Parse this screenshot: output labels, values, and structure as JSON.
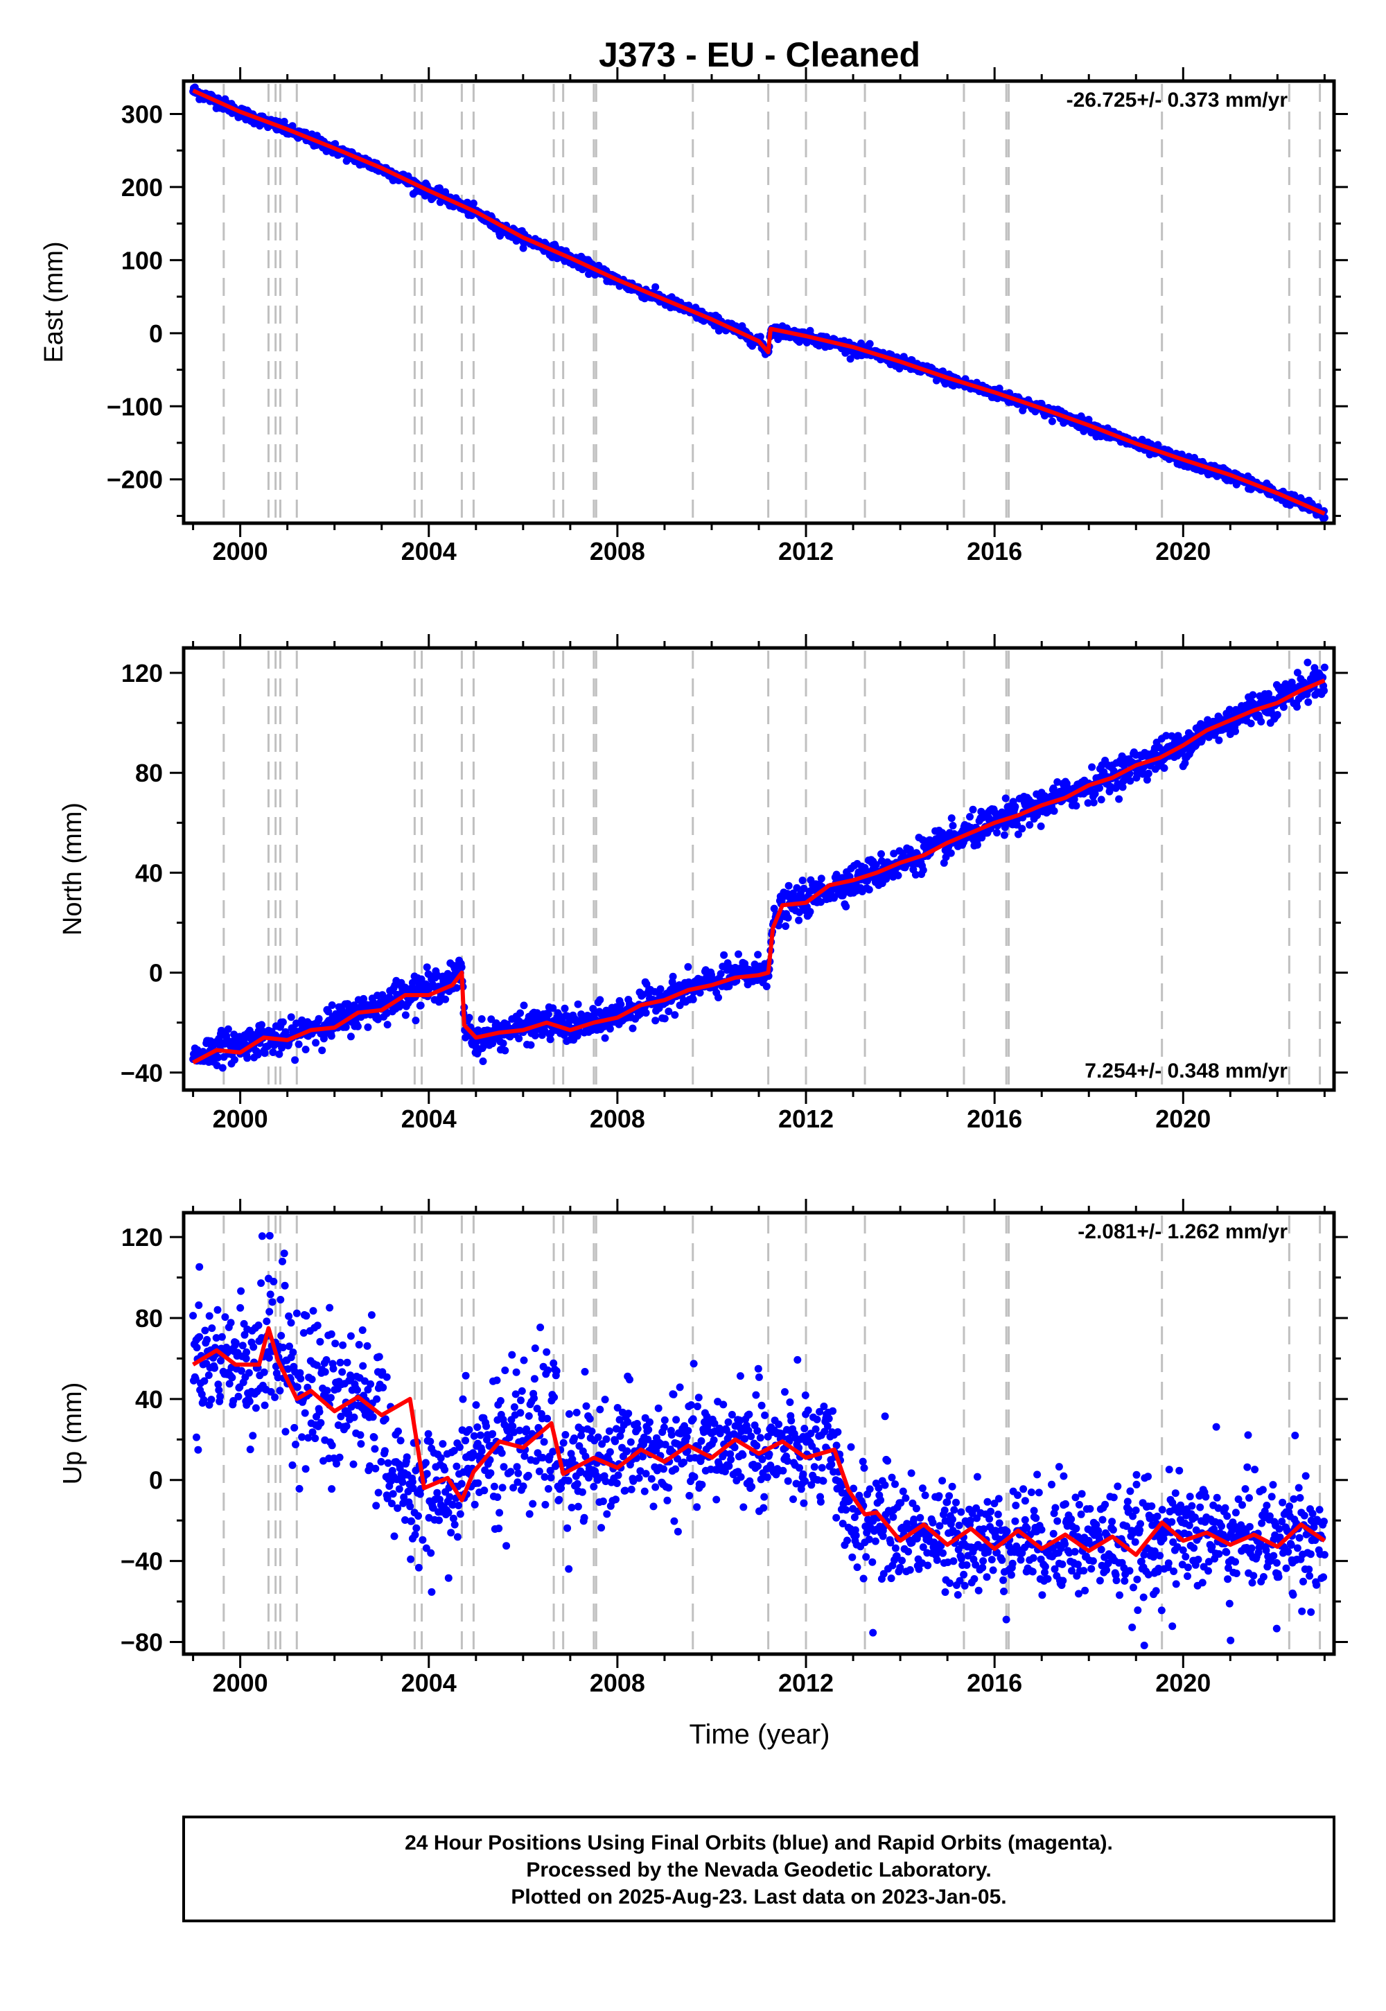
{
  "title": "J373  - EU - Cleaned",
  "xlabel": "Time (year)",
  "footer": {
    "line1": "24 Hour Positions Using Final Orbits (blue) and Rapid Orbits (magenta).",
    "line2": "Processed by the Nevada Geodetic Laboratory.",
    "line3": "Plotted on 2025-Aug-23. Last data on 2023-Jan-05."
  },
  "colors": {
    "observations": "#0000ff",
    "model": "#ff0000",
    "event_lines": "#c0c0c0",
    "axes": "#000000"
  },
  "chart_data": [
    {
      "type": "scatter",
      "ylabel": "East (mm)",
      "rate": "-26.725+/- 0.373 mm/yr",
      "rate_position": "top-right",
      "xlim": [
        1998.8,
        2023.2
      ],
      "ylim": [
        -260,
        345
      ],
      "x_ticks": [
        2000,
        2004,
        2008,
        2012,
        2016,
        2020
      ],
      "y_ticks": [
        -200,
        -100,
        0,
        100,
        200,
        300
      ],
      "y_tick_labels": [
        "−200",
        "−100",
        "0",
        "100",
        "200",
        "300"
      ],
      "event_lines_years": [
        1999.65,
        2000.6,
        2000.75,
        2000.85,
        2001.2,
        2003.7,
        2003.85,
        2004.7,
        2004.95,
        2006.65,
        2006.85,
        2007.5,
        2007.55,
        2009.6,
        2011.2,
        2012.0,
        2013.25,
        2015.35,
        2016.25,
        2016.3,
        2019.55,
        2022.25,
        2022.9
      ],
      "series": [
        {
          "role": "daily positions",
          "x": [
            1999.0,
            1999.5,
            2000.0,
            2000.5,
            2001.0,
            2001.5,
            2002.0,
            2002.5,
            2003.0,
            2003.5,
            2004.0,
            2004.5,
            2005.0,
            2005.5,
            2006.0,
            2006.5,
            2007.0,
            2007.5,
            2008.0,
            2008.5,
            2009.0,
            2009.5,
            2010.0,
            2010.5,
            2011.0,
            2011.2,
            2011.25,
            2011.5,
            2012.0,
            2012.5,
            2013.0,
            2013.5,
            2014.0,
            2014.5,
            2015.0,
            2015.5,
            2016.0,
            2016.5,
            2017.0,
            2017.5,
            2018.0,
            2018.5,
            2019.0,
            2019.5,
            2020.0,
            2020.5,
            2021.0,
            2021.5,
            2022.0,
            2022.5,
            2023.0
          ],
          "y": [
            332,
            318,
            302,
            290,
            278,
            265,
            252,
            238,
            225,
            210,
            194,
            180,
            165,
            145,
            130,
            118,
            102,
            88,
            72,
            58,
            45,
            32,
            18,
            5,
            -12,
            -27,
            5,
            2,
            -5,
            -12,
            -20,
            -30,
            -40,
            -50,
            -62,
            -72,
            -82,
            -92,
            -104,
            -115,
            -127,
            -140,
            -152,
            -163,
            -174,
            -185,
            -195,
            -207,
            -220,
            -233,
            -248
          ]
        },
        {
          "role": "model fit",
          "x": [
            1999.0,
            2000.0,
            2001.0,
            2002.0,
            2003.0,
            2004.0,
            2005.0,
            2006.0,
            2007.0,
            2008.0,
            2009.0,
            2010.0,
            2011.0,
            2011.2,
            2011.25,
            2012.0,
            2013.0,
            2014.0,
            2015.0,
            2016.0,
            2017.0,
            2018.0,
            2019.0,
            2020.0,
            2021.0,
            2022.0,
            2023.0
          ],
          "y": [
            332,
            303,
            279,
            253,
            226,
            195,
            166,
            131,
            103,
            73,
            46,
            19,
            -11,
            -26,
            6,
            -4,
            -19,
            -39,
            -61,
            -81,
            -103,
            -126,
            -151,
            -173,
            -194,
            -219,
            -247
          ]
        }
      ]
    },
    {
      "type": "scatter",
      "ylabel": "North (mm)",
      "rate": "7.254+/- 0.348 mm/yr",
      "rate_position": "bottom-right",
      "xlim": [
        1998.8,
        2023.2
      ],
      "ylim": [
        -47,
        130
      ],
      "x_ticks": [
        2000,
        2004,
        2008,
        2012,
        2016,
        2020
      ],
      "y_ticks": [
        -40,
        0,
        40,
        80,
        120
      ],
      "y_tick_labels": [
        "−40",
        "0",
        "40",
        "80",
        "120"
      ],
      "event_lines_years": [
        1999.65,
        2000.6,
        2000.75,
        2000.85,
        2001.2,
        2003.7,
        2003.85,
        2004.7,
        2004.95,
        2006.65,
        2006.85,
        2007.5,
        2007.55,
        2009.6,
        2011.2,
        2012.0,
        2013.25,
        2015.35,
        2016.25,
        2016.3,
        2019.55,
        2022.25,
        2022.9
      ],
      "series": [
        {
          "role": "daily positions",
          "x": [
            1999.0,
            1999.5,
            2000.0,
            2000.5,
            2001.0,
            2001.5,
            2002.0,
            2002.5,
            2003.0,
            2003.5,
            2004.0,
            2004.5,
            2004.7,
            2004.75,
            2005.0,
            2005.5,
            2006.0,
            2006.5,
            2007.0,
            2007.5,
            2008.0,
            2008.5,
            2009.0,
            2009.5,
            2010.0,
            2010.5,
            2011.0,
            2011.2,
            2011.3,
            2011.5,
            2012.0,
            2012.5,
            2013.0,
            2013.5,
            2014.0,
            2014.5,
            2015.0,
            2015.5,
            2016.0,
            2016.5,
            2017.0,
            2017.5,
            2018.0,
            2018.5,
            2019.0,
            2019.5,
            2020.0,
            2020.5,
            2021.0,
            2021.5,
            2022.0,
            2022.5,
            2023.0
          ],
          "y": [
            -34,
            -30,
            -29,
            -26,
            -27,
            -22,
            -20,
            -16,
            -13,
            -8,
            -6,
            -3,
            1,
            -20,
            -27,
            -24,
            -22,
            -20,
            -22,
            -20,
            -17,
            -13,
            -10,
            -7,
            -4,
            -1,
            0,
            2,
            18,
            26,
            29,
            34,
            37,
            40,
            44,
            48,
            52,
            56,
            60,
            63,
            67,
            71,
            75,
            79,
            83,
            87,
            91,
            97,
            101,
            106,
            109,
            114,
            118
          ]
        },
        {
          "role": "model fit",
          "x": [
            1999.0,
            1999.5,
            2000.0,
            2000.5,
            2001.0,
            2001.5,
            2002.0,
            2002.5,
            2003.0,
            2003.5,
            2004.0,
            2004.5,
            2004.7,
            2004.75,
            2005.0,
            2005.5,
            2006.0,
            2006.5,
            2007.0,
            2007.5,
            2008.0,
            2008.5,
            2009.0,
            2009.5,
            2010.0,
            2010.5,
            2011.0,
            2011.2,
            2011.3,
            2011.5,
            2012.0,
            2012.5,
            2013.0,
            2013.5,
            2014.0,
            2014.5,
            2015.0,
            2015.5,
            2016.0,
            2016.5,
            2017.0,
            2017.5,
            2018.0,
            2018.5,
            2019.0,
            2019.5,
            2020.0,
            2020.5,
            2021.0,
            2021.5,
            2022.0,
            2022.5,
            2023.0
          ],
          "y": [
            -36,
            -31,
            -32,
            -26,
            -27,
            -23,
            -22,
            -16,
            -15,
            -9,
            -9,
            -5,
            0,
            -21,
            -26,
            -24,
            -23,
            -20,
            -23,
            -20,
            -18,
            -13,
            -11,
            -7,
            -5,
            -2,
            -1,
            0,
            18,
            27,
            28,
            35,
            37,
            40,
            44,
            47,
            52,
            56,
            60,
            63,
            67,
            70,
            75,
            78,
            83,
            86,
            91,
            97,
            101,
            105,
            108,
            113,
            117
          ]
        }
      ]
    },
    {
      "type": "scatter",
      "ylabel": "Up (mm)",
      "xlabel": "Time (year)",
      "rate": "-2.081+/- 1.262 mm/yr",
      "rate_position": "top-right",
      "xlim": [
        1998.8,
        2023.2
      ],
      "ylim": [
        -86,
        132
      ],
      "x_ticks": [
        2000,
        2004,
        2008,
        2012,
        2016,
        2020
      ],
      "y_ticks": [
        -80,
        -40,
        0,
        40,
        80,
        120
      ],
      "y_tick_labels": [
        "−80",
        "−40",
        "0",
        "40",
        "80",
        "120"
      ],
      "event_lines_years": [
        1999.65,
        2000.6,
        2000.75,
        2000.85,
        2001.2,
        2003.7,
        2003.85,
        2004.7,
        2004.95,
        2006.65,
        2006.85,
        2007.5,
        2007.55,
        2009.6,
        2011.2,
        2012.0,
        2013.25,
        2015.35,
        2016.25,
        2016.3,
        2019.55,
        2022.25,
        2022.9
      ],
      "series": [
        {
          "role": "daily positions",
          "x": [
            1999.0,
            1999.5,
            2000.0,
            2000.5,
            2000.6,
            2001.0,
            2001.5,
            2002.0,
            2002.5,
            2003.0,
            2003.2,
            2003.5,
            2003.9,
            2004.5,
            2004.95,
            2005.5,
            2006.0,
            2006.6,
            2006.85,
            2007.5,
            2008.0,
            2008.5,
            2009.0,
            2009.5,
            2010.0,
            2010.5,
            2011.0,
            2011.5,
            2012.0,
            2012.5,
            2012.8,
            2013.2,
            2013.5,
            2014.0,
            2014.5,
            2015.0,
            2015.5,
            2016.0,
            2016.5,
            2017.0,
            2017.5,
            2018.0,
            2018.5,
            2019.0,
            2019.5,
            2020.0,
            2020.5,
            2021.0,
            2021.5,
            2022.0,
            2022.5,
            2023.0
          ],
          "y": [
            58,
            62,
            57,
            64,
            72,
            58,
            46,
            38,
            40,
            36,
            0,
            -2,
            -5,
            -3,
            12,
            18,
            20,
            26,
            5,
            8,
            12,
            14,
            12,
            14,
            16,
            18,
            14,
            14,
            12,
            14,
            -10,
            -22,
            -18,
            -26,
            -24,
            -30,
            -26,
            -32,
            -26,
            -32,
            -28,
            -32,
            -30,
            -34,
            -26,
            -28,
            -26,
            -30,
            -26,
            -30,
            -24,
            -30
          ]
        },
        {
          "role": "model fit",
          "x": [
            1999.0,
            1999.5,
            1999.9,
            2000.4,
            2000.6,
            2000.8,
            2001.2,
            2001.5,
            2002.0,
            2002.5,
            2003.0,
            2003.6,
            2003.9,
            2004.4,
            2004.7,
            2004.95,
            2005.5,
            2006.0,
            2006.6,
            2006.85,
            2007.5,
            2008.0,
            2008.5,
            2009.0,
            2009.5,
            2010.0,
            2010.5,
            2011.0,
            2011.5,
            2012.0,
            2012.6,
            2012.9,
            2013.25,
            2013.5,
            2014.0,
            2014.5,
            2015.0,
            2015.5,
            2016.0,
            2016.5,
            2017.0,
            2017.5,
            2018.0,
            2018.5,
            2019.0,
            2019.55,
            2020.0,
            2020.5,
            2021.0,
            2021.5,
            2022.0,
            2022.5,
            2023.0
          ],
          "y": [
            57,
            64,
            57,
            57,
            75,
            59,
            40,
            44,
            34,
            41,
            32,
            40,
            -4,
            1,
            -10,
            4,
            19,
            16,
            28,
            3,
            11,
            6,
            15,
            9,
            17,
            11,
            20,
            13,
            19,
            11,
            15,
            -5,
            -17,
            -16,
            -30,
            -22,
            -32,
            -24,
            -34,
            -25,
            -34,
            -27,
            -35,
            -28,
            -37,
            -21,
            -30,
            -26,
            -32,
            -27,
            -33,
            -22,
            -30
          ]
        }
      ]
    }
  ]
}
